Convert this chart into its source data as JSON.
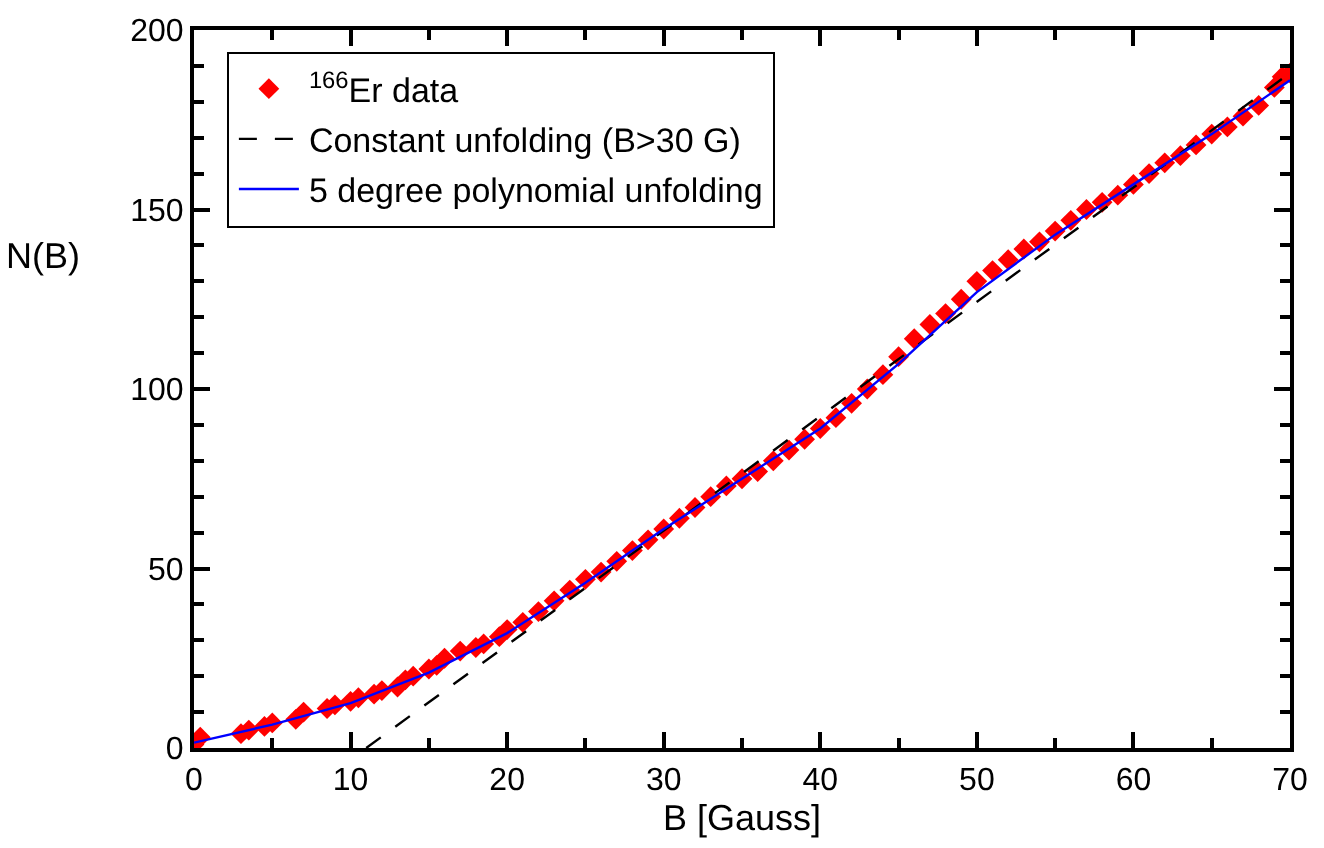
{
  "chart_data": {
    "type": "scatter",
    "xlabel": "B [Gauss]",
    "ylabel": "N(B)",
    "xlim": [
      0,
      70
    ],
    "xticks": [
      0,
      10,
      20,
      30,
      40,
      50,
      60,
      70
    ],
    "ylim": [
      0,
      200
    ],
    "yticks": [
      0,
      50,
      100,
      150,
      200
    ],
    "legend": "top left",
    "series": [
      {
        "name": "$^{166}$Er data",
        "color": "#ff0000",
        "marker": "diamond",
        "x": [
          0,
          0.4,
          3,
          3.5,
          4.5,
          5,
          6.5,
          7,
          8.5,
          9,
          10,
          10.5,
          11.5,
          12,
          13,
          13.5,
          14,
          15,
          15.5,
          16,
          17,
          18,
          18.5,
          19.5,
          20,
          21,
          22,
          23,
          24,
          25,
          26,
          27,
          28,
          29,
          30,
          31,
          32,
          33,
          34,
          35,
          36,
          37,
          38,
          39,
          40,
          41,
          42,
          43,
          44,
          45,
          46,
          47,
          48,
          49,
          50,
          51,
          52,
          53,
          54,
          55,
          56,
          57,
          58,
          59,
          60,
          61,
          62,
          63,
          64,
          65,
          66,
          67,
          68,
          69,
          69.5,
          70
        ],
        "values": [
          1,
          3,
          4,
          5,
          6,
          7,
          8,
          10,
          11,
          12,
          13,
          14,
          15,
          16,
          17,
          19,
          20,
          22,
          23,
          25,
          27,
          28,
          29,
          31,
          33,
          35,
          38,
          41,
          44,
          47,
          49,
          52,
          55,
          58,
          61,
          64,
          67,
          70,
          73,
          75,
          77,
          80,
          83,
          86,
          89,
          92,
          96,
          100,
          104,
          109,
          114,
          118,
          121,
          125,
          130,
          133,
          136,
          139,
          141,
          144,
          147,
          150,
          152,
          154,
          157,
          160,
          163,
          165,
          168,
          171,
          173,
          176,
          179,
          184,
          187,
          188
        ]
      },
      {
        "name": "Constant unfolding (B>30 G)",
        "type": "line",
        "color": "#000000",
        "line_style": "dashed",
        "marker": "none",
        "x": [
          11,
          70
        ],
        "values": [
          0,
          188
        ]
      },
      {
        "name": "5 degree polynomial unfolding",
        "type": "line",
        "color": "#0000ff",
        "line_style": "solid",
        "marker": "none",
        "x": [
          0,
          5,
          10,
          15,
          20,
          25,
          30,
          35,
          40,
          45,
          50,
          55,
          60,
          65,
          70
        ],
        "values": [
          1.5,
          6.5,
          12.5,
          21,
          32,
          46,
          61,
          75,
          89,
          107,
          127,
          143,
          157,
          171,
          186
        ]
      }
    ]
  }
}
